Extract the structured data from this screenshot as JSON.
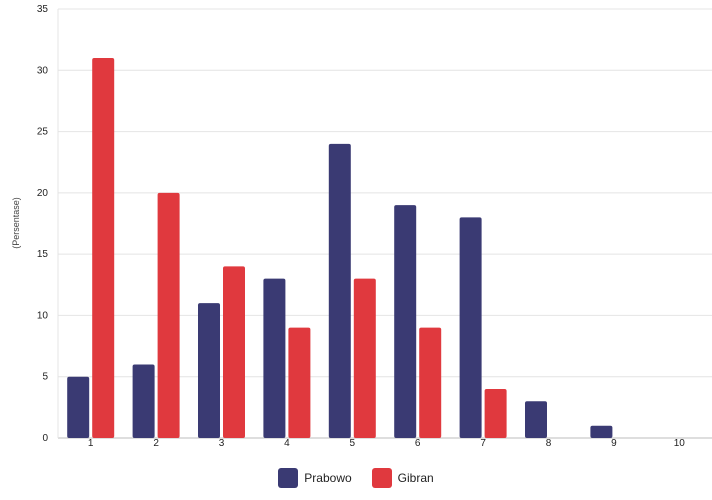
{
  "chart_data": {
    "type": "bar",
    "title": "",
    "xlabel": "",
    "ylabel": "(Persentase)",
    "ylim": [
      0,
      35
    ],
    "yticks": [
      0,
      5,
      10,
      15,
      20,
      25,
      30,
      35
    ],
    "grid": true,
    "legend_position": "bottom-center",
    "categories": [
      "1",
      "2",
      "3",
      "4",
      "5",
      "6",
      "7",
      "8",
      "9",
      "10"
    ],
    "series": [
      {
        "name": "Prabowo",
        "color": "#3a3a73",
        "values": [
          5,
          6,
          11,
          13,
          24,
          19,
          18,
          3,
          1,
          0
        ]
      },
      {
        "name": "Gibran",
        "color": "#e0393e",
        "values": [
          31,
          20,
          14,
          9,
          13,
          9,
          4,
          0,
          0,
          0
        ]
      }
    ]
  }
}
